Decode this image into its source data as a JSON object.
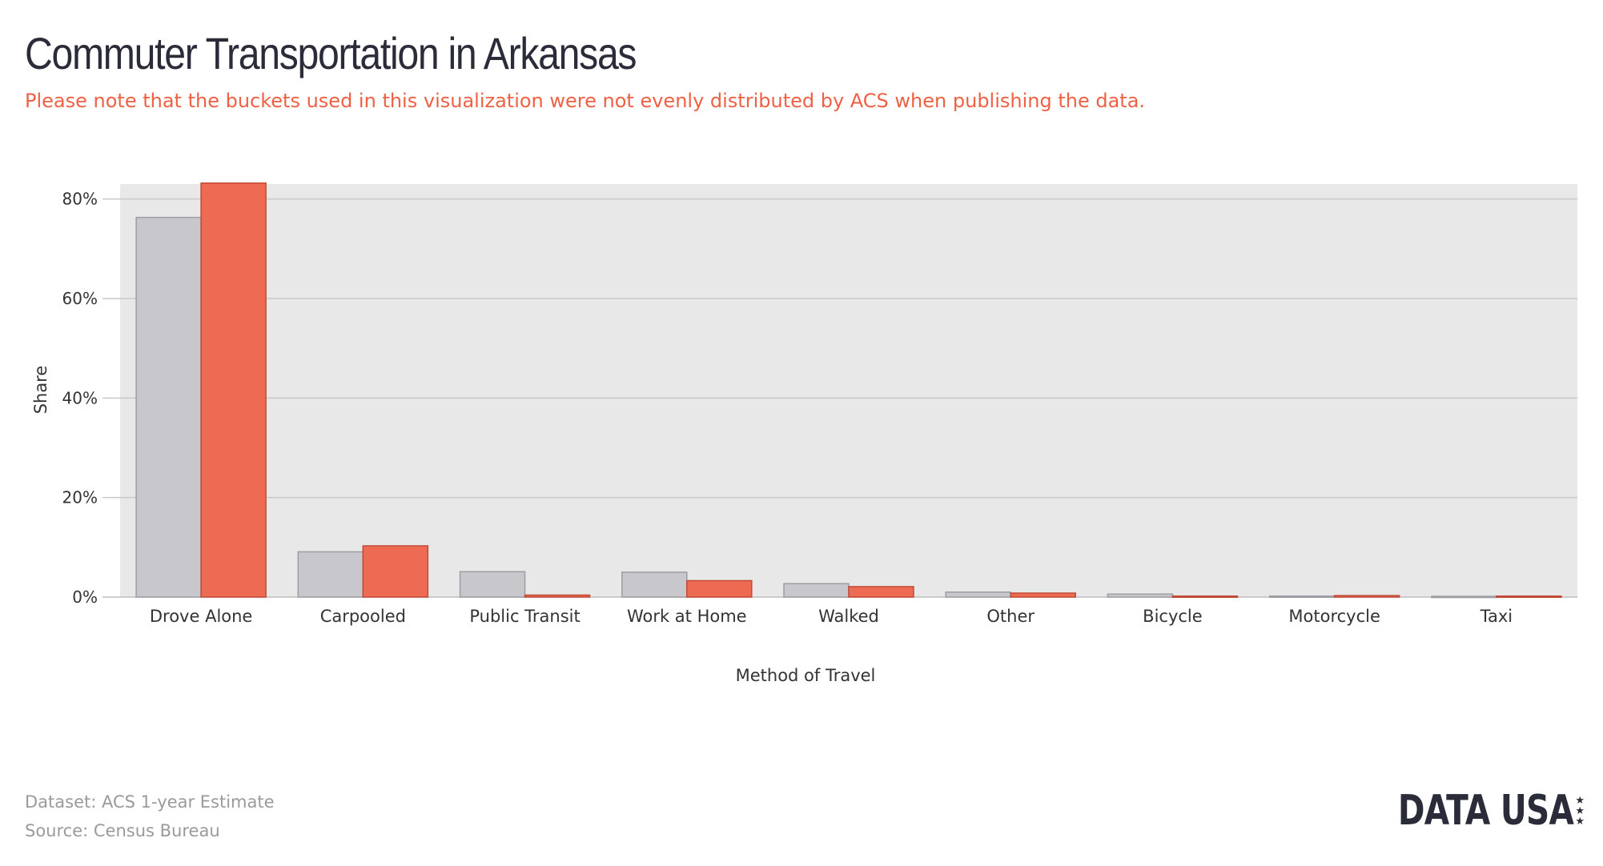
{
  "header": {
    "title": "Commuter Transportation in Arkansas",
    "subtitle": "Please note that the buckets used in this visualization were not evenly distributed by ACS when publishing the data."
  },
  "footer": {
    "dataset": "Dataset: ACS 1-year Estimate",
    "source": "Source: Census Bureau"
  },
  "logo": {
    "text": "DATA USA",
    "stars": "★★★"
  },
  "colors": {
    "gray_series": "#c8c8cc",
    "red_series": "#ee6b53",
    "plot_bg": "#e8e8e8"
  },
  "chart_data": {
    "type": "bar",
    "xlabel": "Method of Travel",
    "ylabel": "Share",
    "ylim": [
      0,
      83
    ],
    "yticks": [
      0,
      20,
      40,
      60,
      80
    ],
    "ytick_labels": [
      "0%",
      "20%",
      "40%",
      "60%",
      "80%"
    ],
    "grid": true,
    "legend": "none",
    "categories": [
      "Drove Alone",
      "Carpooled",
      "Public Transit",
      "Work at Home",
      "Walked",
      "Other",
      "Bicycle",
      "Motorcycle",
      "Taxi"
    ],
    "series": [
      {
        "color": "#c8c8cc",
        "values": [
          76.3,
          9.1,
          5.1,
          5.0,
          2.7,
          1.0,
          0.6,
          0.2,
          0.15
        ]
      },
      {
        "color": "#ee6b53",
        "values": [
          83.2,
          10.3,
          0.4,
          3.3,
          2.1,
          0.8,
          0.2,
          0.3,
          0.2
        ]
      }
    ]
  }
}
